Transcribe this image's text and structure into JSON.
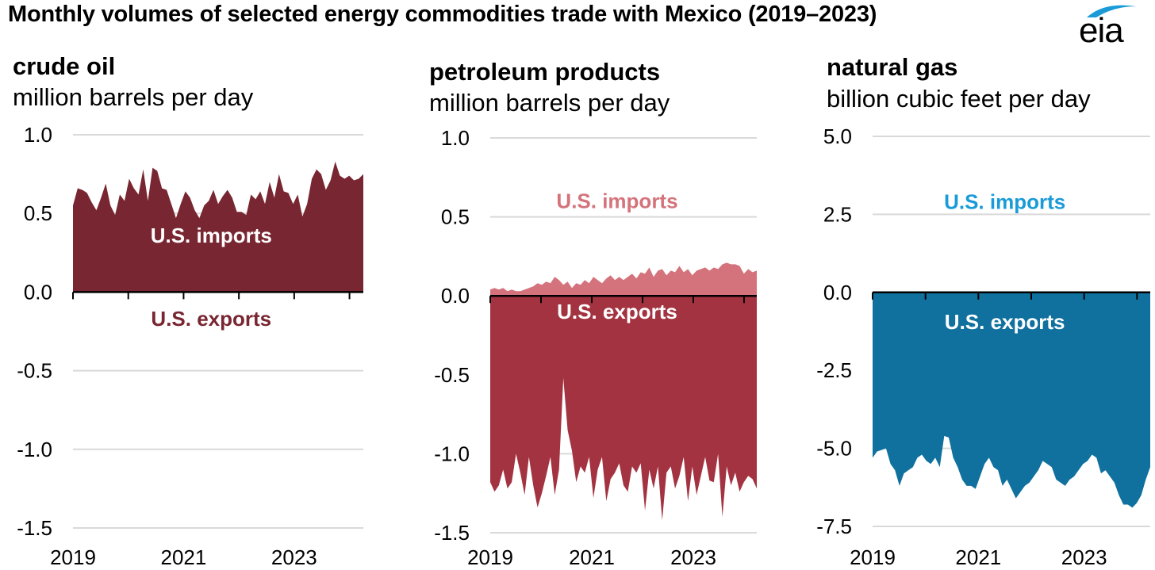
{
  "title": "Monthly volumes of selected energy commodities trade with Mexico (2019–2023)",
  "logo": "eia",
  "colors": {
    "crude": "#782631",
    "products_exports": "#A33340",
    "products_imports": "#D4737B",
    "gas": "#10719F",
    "gas_label": "#1A9BD7",
    "grid": "#d9d9d9",
    "axis": "#000000"
  },
  "chart_data": [
    {
      "type": "area",
      "title": "crude oil",
      "unit": "million barrels per day",
      "ylim": [
        -1.5,
        1.0
      ],
      "yticks": [
        1.0,
        0.5,
        0.0,
        -0.5,
        -1.0,
        -1.5
      ],
      "ytick_labels": [
        "1.0",
        "0.5",
        "0.0",
        "-0.5",
        "-1.0",
        "-1.5"
      ],
      "xlim": [
        2019,
        2024.25
      ],
      "xticks": [
        2019,
        2021,
        2023
      ],
      "xtick_labels": [
        "2019",
        "2021",
        "2023"
      ],
      "annotations": [
        {
          "text": "U.S. imports",
          "x": 2021.5,
          "y": 0.36,
          "style": "light"
        },
        {
          "text": "U.S. exports",
          "x": 2021.5,
          "y": -0.17,
          "style": "dark"
        }
      ],
      "series": [
        {
          "name": "U.S. imports",
          "values": [
            0.55,
            0.66,
            0.65,
            0.63,
            0.57,
            0.52,
            0.6,
            0.69,
            0.55,
            0.49,
            0.62,
            0.58,
            0.72,
            0.66,
            0.62,
            0.78,
            0.58,
            0.79,
            0.77,
            0.66,
            0.65,
            0.56,
            0.47,
            0.56,
            0.64,
            0.6,
            0.52,
            0.47,
            0.55,
            0.58,
            0.65,
            0.56,
            0.61,
            0.65,
            0.6,
            0.51,
            0.51,
            0.49,
            0.62,
            0.59,
            0.64,
            0.56,
            0.7,
            0.6,
            0.75,
            0.64,
            0.63,
            0.56,
            0.62,
            0.48,
            0.56,
            0.72,
            0.78,
            0.75,
            0.65,
            0.71,
            0.83,
            0.74,
            0.72,
            0.74,
            0.71,
            0.72,
            0.75
          ]
        },
        {
          "name": "U.S. exports",
          "values": [
            0,
            0,
            0,
            0,
            0,
            0,
            0,
            0,
            0,
            0,
            0,
            0,
            0,
            0,
            0,
            0,
            0,
            0,
            0,
            0,
            0,
            0,
            0,
            0,
            0,
            0,
            0,
            0,
            0,
            0,
            0,
            0,
            0,
            0,
            0,
            0,
            0,
            0,
            0,
            0,
            0,
            0,
            0,
            0,
            0,
            0,
            0,
            0,
            0,
            0,
            0,
            0,
            0,
            0,
            0,
            0,
            0,
            0,
            0,
            0,
            0,
            0,
            0
          ]
        }
      ]
    },
    {
      "type": "area",
      "title": "petroleum products",
      "unit": "million barrels per day",
      "ylim": [
        -1.5,
        1.0
      ],
      "yticks": [
        1.0,
        0.5,
        0.0,
        -0.5,
        -1.0,
        -1.5
      ],
      "ytick_labels": [
        "1.0",
        "0.5",
        "0.0",
        "-0.5",
        "-1.0",
        "-1.5"
      ],
      "xlim": [
        2019,
        2024.25
      ],
      "xticks": [
        2019,
        2021,
        2023
      ],
      "xtick_labels": [
        "2019",
        "2021",
        "2023"
      ],
      "annotations": [
        {
          "text": "U.S. imports",
          "x": 2021.5,
          "y": 0.6,
          "style": "imports"
        },
        {
          "text": "U.S. exports",
          "x": 2021.5,
          "y": -0.1,
          "style": "light"
        }
      ],
      "series": [
        {
          "name": "U.S. imports",
          "values": [
            0.04,
            0.05,
            0.04,
            0.05,
            0.03,
            0.04,
            0.03,
            0.03,
            0.04,
            0.05,
            0.06,
            0.08,
            0.07,
            0.09,
            0.08,
            0.12,
            0.1,
            0.07,
            0.09,
            0.05,
            0.08,
            0.07,
            0.1,
            0.08,
            0.12,
            0.1,
            0.08,
            0.11,
            0.13,
            0.1,
            0.12,
            0.1,
            0.12,
            0.14,
            0.11,
            0.15,
            0.14,
            0.18,
            0.12,
            0.16,
            0.17,
            0.13,
            0.16,
            0.15,
            0.19,
            0.15,
            0.17,
            0.13,
            0.16,
            0.17,
            0.18,
            0.16,
            0.18,
            0.17,
            0.2,
            0.21,
            0.2,
            0.2,
            0.19,
            0.14,
            0.17,
            0.15,
            0.16
          ]
        },
        {
          "name": "U.S. exports",
          "values": [
            -1.18,
            -1.24,
            -1.2,
            -1.1,
            -1.22,
            -1.18,
            -1.0,
            -1.12,
            -1.26,
            -1.02,
            -1.2,
            -1.34,
            -1.25,
            -1.14,
            -1.02,
            -1.26,
            -1.1,
            -0.52,
            -0.85,
            -0.98,
            -1.18,
            -1.08,
            -1.12,
            -1.02,
            -1.28,
            -1.1,
            -1.02,
            -1.3,
            -1.16,
            -1.12,
            -1.06,
            -1.2,
            -1.24,
            -1.08,
            -1.12,
            -1.06,
            -1.36,
            -1.1,
            -1.22,
            -1.08,
            -1.42,
            -1.12,
            -1.08,
            -1.22,
            -1.14,
            -1.02,
            -1.3,
            -1.08,
            -1.26,
            -1.14,
            -1.02,
            -1.17,
            -1.18,
            -1.0,
            -1.4,
            -1.08,
            -1.2,
            -1.12,
            -1.24,
            -1.18,
            -1.14,
            -1.16,
            -1.22
          ]
        }
      ]
    },
    {
      "type": "area",
      "title": "natural gas",
      "unit": "billion cubic feet per day",
      "ylim": [
        -7.5,
        5.0
      ],
      "yticks": [
        5.0,
        2.5,
        0.0,
        -2.5,
        -5.0,
        -7.5
      ],
      "ytick_labels": [
        "5.0",
        "2.5",
        "0.0",
        "-2.5",
        "-5.0",
        "-7.5"
      ],
      "xlim": [
        2019,
        2024.25
      ],
      "xticks": [
        2019,
        2021,
        2023
      ],
      "xtick_labels": [
        "2019",
        "2021",
        "2023"
      ],
      "annotations": [
        {
          "text": "U.S. imports",
          "x": 2021.5,
          "y": 2.9,
          "style": "gasblue"
        },
        {
          "text": "U.S. exports",
          "x": 2021.5,
          "y": -0.95,
          "style": "light"
        }
      ],
      "series": [
        {
          "name": "U.S. imports",
          "values": [
            0,
            0,
            0,
            0,
            0,
            0,
            0,
            0,
            0,
            0,
            0,
            0,
            0,
            0,
            0,
            0,
            0,
            0,
            0,
            0,
            0,
            0,
            0,
            0,
            0,
            0,
            0,
            0,
            0,
            0,
            0,
            0,
            0,
            0,
            0,
            0,
            0,
            0,
            0,
            0,
            0,
            0,
            0,
            0,
            0,
            0,
            0,
            0,
            0,
            0,
            0,
            0,
            0,
            0,
            0,
            0,
            0,
            0,
            0,
            0,
            0,
            0,
            0
          ]
        },
        {
          "name": "U.S. exports",
          "values": [
            -5.3,
            -5.1,
            -5.05,
            -5.0,
            -5.5,
            -5.7,
            -6.2,
            -5.8,
            -5.7,
            -5.6,
            -5.3,
            -5.2,
            -5.4,
            -5.5,
            -5.3,
            -5.6,
            -4.6,
            -4.65,
            -5.3,
            -5.6,
            -6.0,
            -6.2,
            -6.2,
            -6.3,
            -5.9,
            -5.5,
            -5.3,
            -5.6,
            -5.7,
            -6.2,
            -6.0,
            -6.3,
            -6.6,
            -6.4,
            -6.2,
            -6.1,
            -5.9,
            -5.7,
            -5.4,
            -5.5,
            -5.6,
            -6.0,
            -6.1,
            -6.2,
            -6.0,
            -5.9,
            -5.7,
            -5.5,
            -5.4,
            -5.2,
            -5.3,
            -5.8,
            -5.7,
            -5.9,
            -6.1,
            -6.5,
            -6.8,
            -6.8,
            -6.9,
            -6.75,
            -6.5,
            -6.0,
            -5.6
          ]
        }
      ]
    }
  ]
}
